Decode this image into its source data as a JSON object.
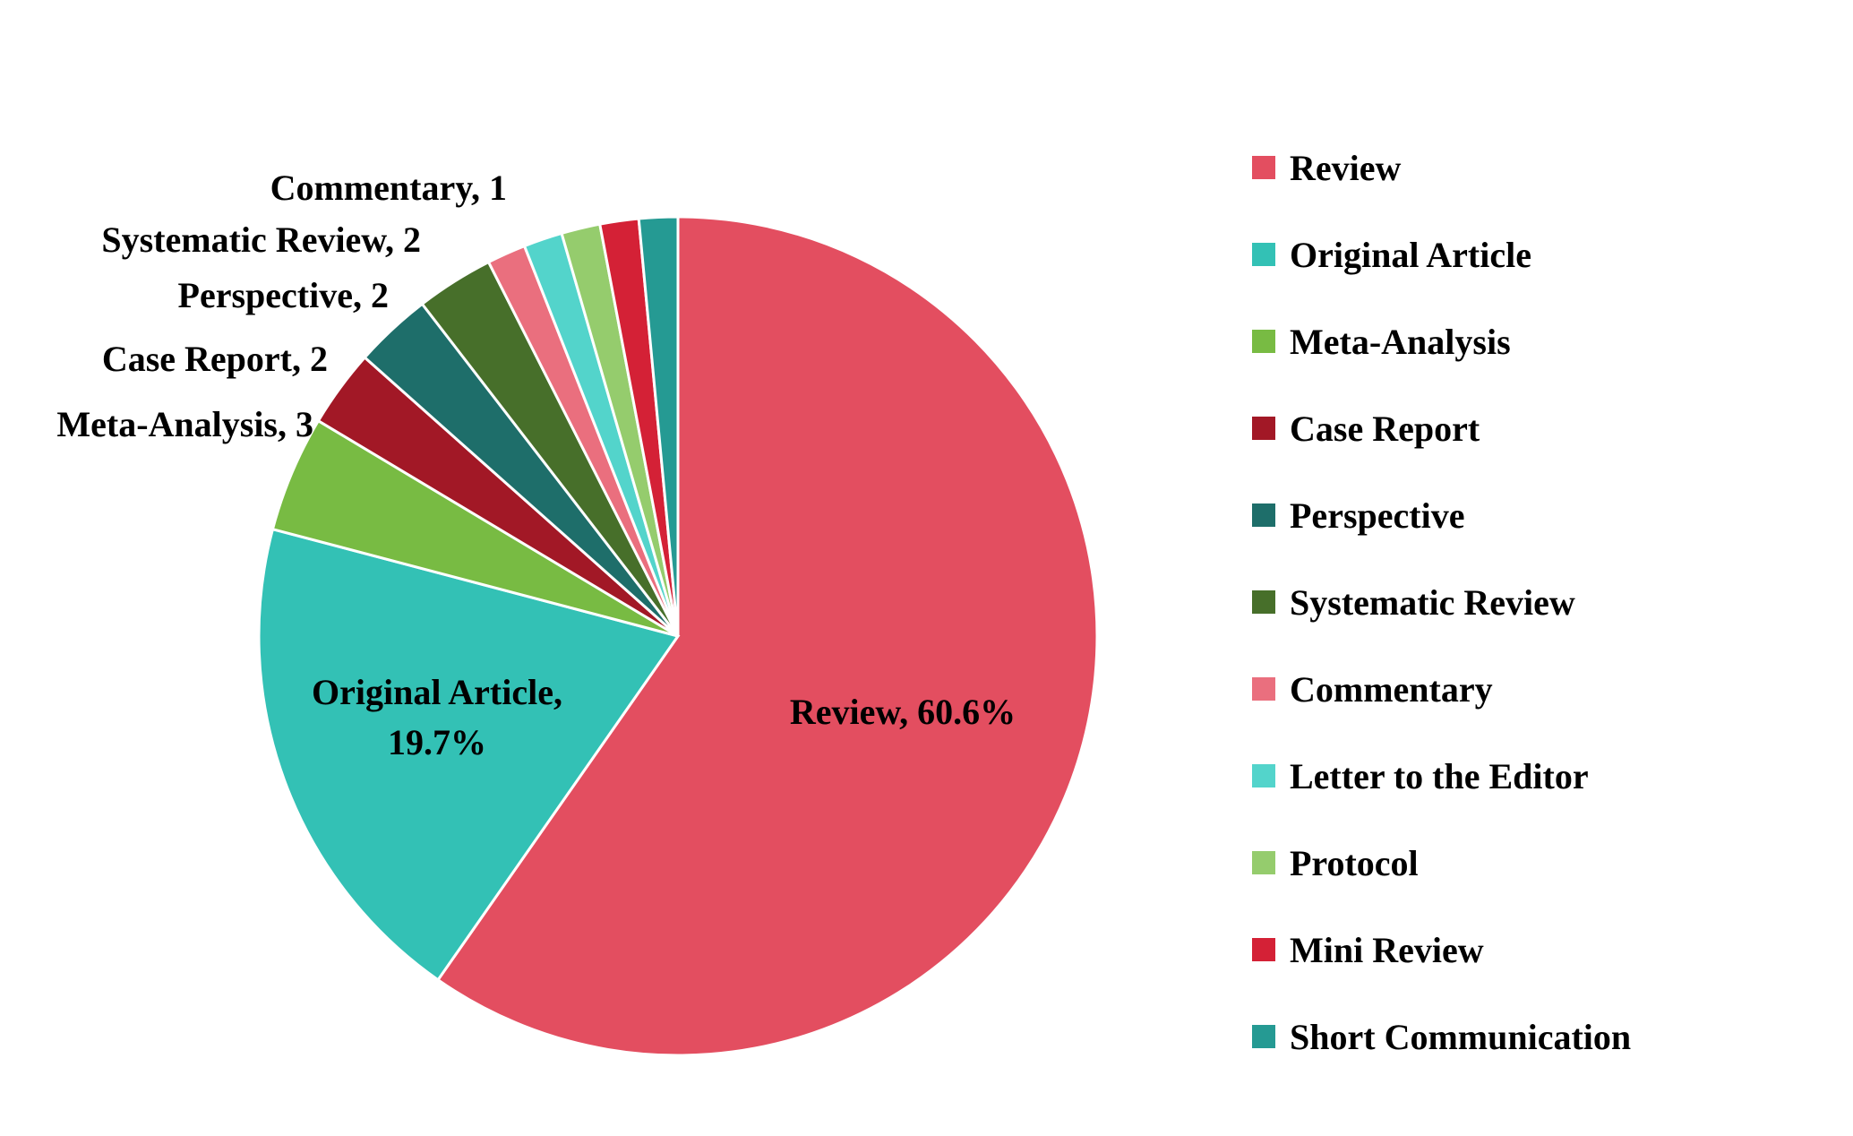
{
  "chart_data": {
    "type": "pie",
    "title": "",
    "slices": [
      {
        "label": "Review",
        "value": 40,
        "color": "#E34E60",
        "data_label": "Review, 60.6%"
      },
      {
        "label": "Original Article",
        "value": 13,
        "color": "#33C1B5",
        "data_label": "Original Article, 19.7%"
      },
      {
        "label": "Meta-Analysis",
        "value": 3,
        "color": "#78BB43",
        "data_label": "Meta-Analysis, 3"
      },
      {
        "label": "Case Report",
        "value": 2,
        "color": "#A21826",
        "data_label": "Case Report, 2"
      },
      {
        "label": "Perspective",
        "value": 2,
        "color": "#1E6E6A",
        "data_label": "Perspective, 2"
      },
      {
        "label": "Systematic Review",
        "value": 2,
        "color": "#476F2A",
        "data_label": "Systematic Review, 2"
      },
      {
        "label": "Commentary",
        "value": 1,
        "color": "#EA6F7E",
        "data_label": "Commentary, 1"
      },
      {
        "label": "Letter to the Editor",
        "value": 1,
        "color": "#53D4CB",
        "data_label": ""
      },
      {
        "label": "Protocol",
        "value": 1,
        "color": "#95CC6D",
        "data_label": ""
      },
      {
        "label": "Mini Review",
        "value": 1,
        "color": "#D42136",
        "data_label": ""
      },
      {
        "label": "Short Communication",
        "value": 1,
        "color": "#259A93",
        "data_label": ""
      }
    ],
    "legend_position": "right",
    "start_angle": "12 o'clock",
    "direction": "clockwise"
  }
}
